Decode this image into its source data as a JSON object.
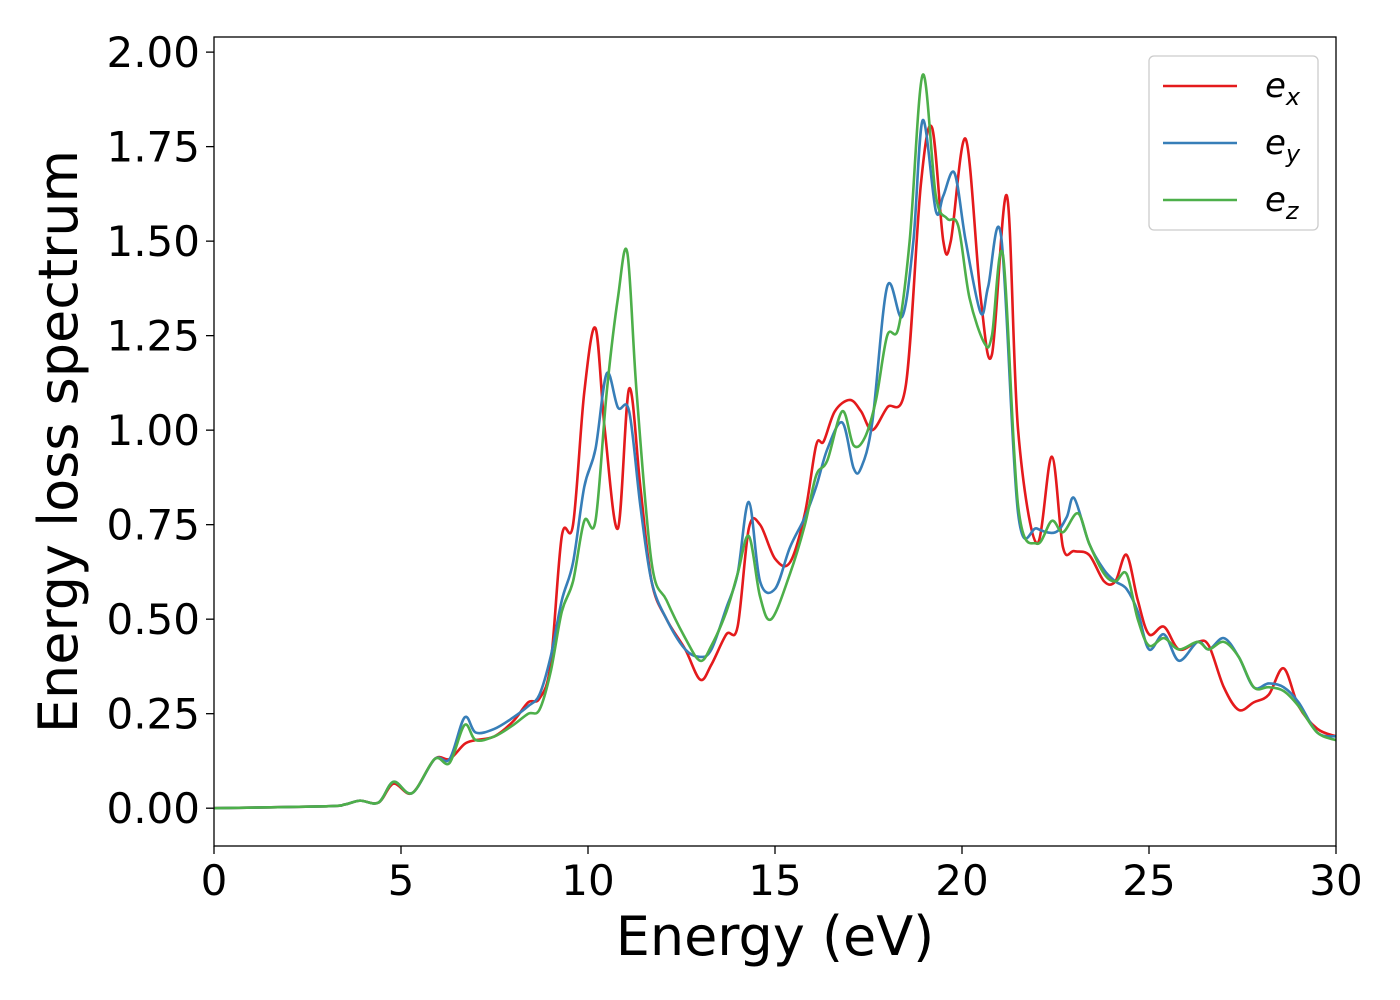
{
  "chart_data": {
    "type": "line",
    "title": "",
    "xlabel": "Energy (eV)",
    "ylabel": "Energy loss spectrum",
    "xlim": [
      0,
      30
    ],
    "ylim": [
      -0.1,
      2.04
    ],
    "xticks": [
      "0",
      "5",
      "10",
      "15",
      "20",
      "25",
      "30"
    ],
    "yticks": [
      "0.00",
      "0.25",
      "0.50",
      "0.75",
      "1.00",
      "1.25",
      "1.50",
      "1.75",
      "2.00"
    ],
    "grid": false,
    "legend_position": "top-right",
    "series": [
      {
        "name": "e",
        "subscript": "x",
        "color": "#e41a1c",
        "x": [
          0,
          3,
          3.5,
          3.9,
          4.4,
          4.8,
          5.3,
          5.9,
          6.3,
          6.7,
          7.0,
          7.5,
          8.0,
          8.4,
          8.7,
          9.0,
          9.3,
          9.6,
          9.9,
          10.2,
          10.45,
          10.8,
          11.1,
          11.4,
          11.7,
          12.1,
          12.6,
          13.0,
          13.3,
          13.7,
          14.0,
          14.3,
          14.6,
          15.0,
          15.4,
          15.8,
          16.1,
          16.3,
          16.6,
          17.0,
          17.3,
          17.6,
          18.0,
          18.5,
          18.9,
          19.2,
          19.5,
          19.7,
          20.1,
          20.5,
          20.8,
          21.2,
          21.5,
          22.0,
          22.4,
          22.7,
          23.0,
          23.4,
          23.8,
          24.1,
          24.4,
          24.7,
          25.0,
          25.4,
          25.8,
          26.3,
          26.6,
          27.0,
          27.4,
          27.8,
          28.2,
          28.6,
          29.0,
          29.5,
          30
        ],
        "values": [
          0.0,
          0.005,
          0.01,
          0.02,
          0.015,
          0.065,
          0.04,
          0.13,
          0.13,
          0.17,
          0.18,
          0.19,
          0.23,
          0.28,
          0.29,
          0.38,
          0.72,
          0.75,
          1.1,
          1.27,
          1.0,
          0.74,
          1.11,
          0.85,
          0.6,
          0.5,
          0.42,
          0.34,
          0.38,
          0.46,
          0.48,
          0.74,
          0.75,
          0.66,
          0.65,
          0.78,
          0.96,
          0.97,
          1.05,
          1.08,
          1.05,
          1.0,
          1.06,
          1.12,
          1.65,
          1.8,
          1.5,
          1.5,
          1.77,
          1.35,
          1.2,
          1.62,
          1.0,
          0.7,
          0.93,
          0.69,
          0.68,
          0.67,
          0.6,
          0.6,
          0.67,
          0.55,
          0.46,
          0.48,
          0.42,
          0.44,
          0.43,
          0.32,
          0.26,
          0.28,
          0.3,
          0.37,
          0.27,
          0.21,
          0.19
        ]
      },
      {
        "name": "e",
        "subscript": "y",
        "color": "#377eb8",
        "x": [
          0,
          3,
          3.5,
          3.9,
          4.4,
          4.8,
          5.3,
          5.9,
          6.3,
          6.7,
          7.0,
          7.5,
          8.0,
          8.4,
          8.7,
          9.0,
          9.3,
          9.6,
          9.9,
          10.2,
          10.5,
          10.8,
          11.1,
          11.4,
          11.7,
          12.1,
          12.6,
          13.0,
          13.3,
          13.7,
          14.0,
          14.3,
          14.6,
          15.0,
          15.4,
          15.8,
          16.1,
          16.4,
          16.8,
          17.1,
          17.3,
          17.6,
          18.0,
          18.4,
          18.7,
          18.95,
          19.3,
          19.5,
          19.8,
          20.1,
          20.5,
          20.7,
          21.05,
          21.5,
          22.0,
          22.5,
          22.8,
          23.0,
          23.4,
          23.8,
          24.1,
          24.4,
          24.7,
          25.0,
          25.4,
          25.8,
          26.3,
          26.6,
          27.0,
          27.4,
          27.8,
          28.2,
          28.6,
          29.0,
          29.5,
          30
        ],
        "values": [
          0.0,
          0.005,
          0.01,
          0.02,
          0.015,
          0.07,
          0.04,
          0.13,
          0.13,
          0.24,
          0.2,
          0.21,
          0.24,
          0.27,
          0.3,
          0.4,
          0.55,
          0.65,
          0.85,
          0.95,
          1.15,
          1.06,
          1.05,
          0.8,
          0.6,
          0.5,
          0.42,
          0.4,
          0.42,
          0.53,
          0.62,
          0.81,
          0.6,
          0.58,
          0.69,
          0.77,
          0.85,
          0.95,
          1.02,
          0.9,
          0.9,
          1.02,
          1.38,
          1.3,
          1.5,
          1.82,
          1.58,
          1.62,
          1.68,
          1.5,
          1.31,
          1.38,
          1.51,
          0.78,
          0.74,
          0.73,
          0.77,
          0.82,
          0.7,
          0.63,
          0.6,
          0.58,
          0.52,
          0.42,
          0.46,
          0.39,
          0.44,
          0.42,
          0.45,
          0.4,
          0.32,
          0.33,
          0.32,
          0.28,
          0.2,
          0.19
        ]
      },
      {
        "name": "e",
        "subscript": "z",
        "color": "#4daf4a",
        "x": [
          0,
          3,
          3.5,
          3.9,
          4.4,
          4.8,
          5.3,
          5.9,
          6.3,
          6.7,
          7.0,
          7.5,
          8.0,
          8.4,
          8.7,
          9.0,
          9.3,
          9.6,
          9.9,
          10.2,
          10.5,
          10.8,
          11.05,
          11.3,
          11.7,
          12.1,
          12.6,
          13.0,
          13.3,
          13.7,
          14.0,
          14.3,
          14.6,
          14.9,
          15.4,
          15.8,
          16.1,
          16.4,
          16.8,
          17.1,
          17.4,
          17.7,
          18.0,
          18.3,
          18.6,
          18.95,
          19.3,
          19.6,
          19.9,
          20.2,
          20.6,
          20.8,
          21.1,
          21.5,
          22.0,
          22.4,
          22.7,
          23.1,
          23.4,
          23.8,
          24.1,
          24.4,
          24.7,
          25.0,
          25.4,
          25.8,
          26.3,
          26.6,
          27.0,
          27.4,
          27.8,
          28.2,
          28.6,
          29.0,
          29.5,
          30
        ],
        "values": [
          0.0,
          0.005,
          0.01,
          0.02,
          0.015,
          0.07,
          0.04,
          0.13,
          0.12,
          0.22,
          0.18,
          0.19,
          0.22,
          0.25,
          0.26,
          0.36,
          0.52,
          0.6,
          0.76,
          0.76,
          1.1,
          1.35,
          1.47,
          1.1,
          0.65,
          0.55,
          0.45,
          0.39,
          0.43,
          0.52,
          0.62,
          0.72,
          0.56,
          0.5,
          0.62,
          0.75,
          0.88,
          0.92,
          1.05,
          0.96,
          0.98,
          1.08,
          1.25,
          1.27,
          1.5,
          1.94,
          1.62,
          1.56,
          1.54,
          1.35,
          1.23,
          1.25,
          1.46,
          0.8,
          0.7,
          0.76,
          0.73,
          0.78,
          0.7,
          0.62,
          0.6,
          0.62,
          0.5,
          0.43,
          0.45,
          0.42,
          0.44,
          0.42,
          0.44,
          0.4,
          0.32,
          0.32,
          0.31,
          0.27,
          0.2,
          0.18
        ]
      }
    ]
  }
}
